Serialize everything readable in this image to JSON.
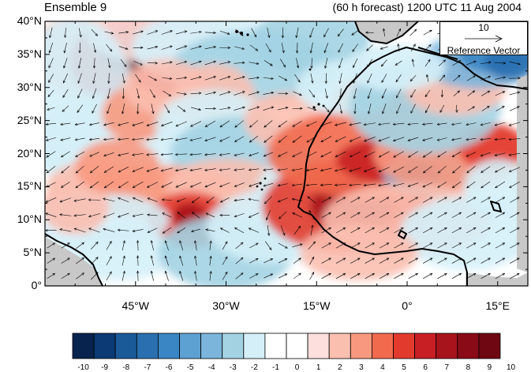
{
  "header": {
    "ensemble_label": "Ensemble 9",
    "forecast_label": "(60 h forecast) 1200 UTC 11 Aug 2004"
  },
  "map": {
    "projection": "cylindrical equidistant",
    "lon_range": [
      -60,
      20
    ],
    "lat_range": [
      0,
      40
    ],
    "lat_ticks": [
      "40°N",
      "35°N",
      "30°N",
      "25°N",
      "20°N",
      "15°N",
      "10°N",
      "5°N",
      "0°"
    ],
    "lon_ticks": [
      "45°W",
      "30°W",
      "15°W",
      "0°",
      "15°E"
    ],
    "field": "wind vectors with shaded anomaly"
  },
  "reference_vector": {
    "magnitude": "10",
    "label": "Reference Vector"
  },
  "colorbar": {
    "labels": [
      "-10",
      "-9",
      "-8",
      "-7",
      "-6",
      "-5",
      "-4",
      "-3",
      "-2",
      "-1",
      "0",
      "1",
      "2",
      "3",
      "4",
      "5",
      "6",
      "7",
      "8",
      "9",
      "10"
    ],
    "colors": [
      "#08234d",
      "#0b3a74",
      "#1a5a99",
      "#2a6fb0",
      "#3a86c4",
      "#5da0d2",
      "#7bb5dc",
      "#a3d3e3",
      "#d5eff8",
      "#ffffff",
      "#ffffff",
      "#fde0dd",
      "#fbbfb0",
      "#f8997f",
      "#f26a4e",
      "#e23b2e",
      "#c81f25",
      "#a8141c",
      "#8a0b17",
      "#6e0711"
    ]
  },
  "colors": {
    "coastline": "#000000",
    "missing": "#c8c8c8",
    "arrow": "#000000"
  }
}
